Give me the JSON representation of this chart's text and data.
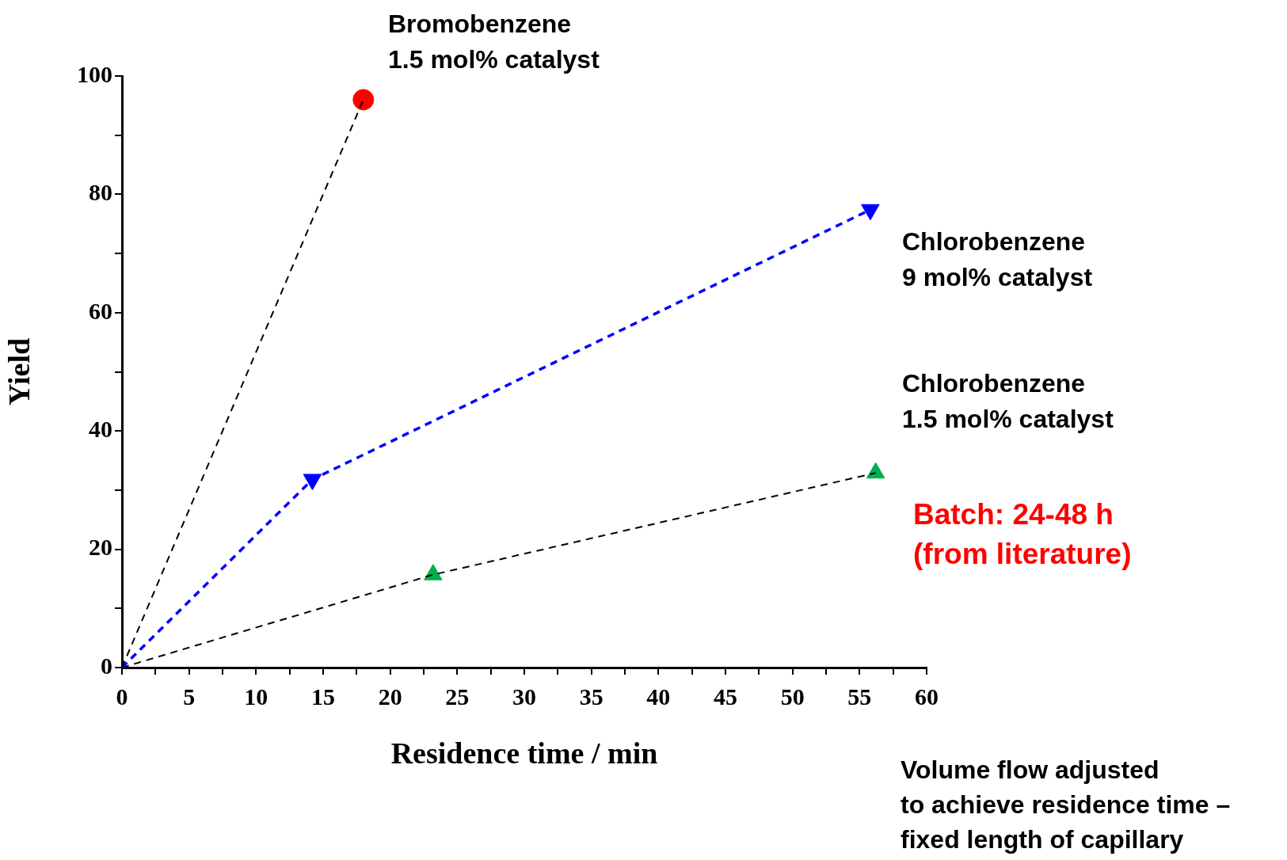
{
  "chart_data": {
    "type": "scatter",
    "xlabel": "Residence time / min",
    "ylabel": "Yield",
    "xlim": [
      0,
      60
    ],
    "ylim": [
      0,
      100
    ],
    "xticks": [
      0,
      {
        "value": 2.5,
        "label": null
      },
      5,
      {
        "value": 7.5,
        "label": null
      },
      10,
      {
        "value": 12.5,
        "label": null
      },
      15,
      {
        "value": 17.5,
        "label": null
      },
      20,
      {
        "value": 22.5,
        "label": null
      },
      25,
      {
        "value": 27.5,
        "label": null
      },
      30,
      {
        "value": 32.5,
        "label": null
      },
      35,
      {
        "value": 37.5,
        "label": null
      },
      40,
      {
        "value": 42.5,
        "label": null
      },
      45,
      {
        "value": 47.5,
        "label": null
      },
      50,
      {
        "value": 52.5,
        "label": null
      },
      55,
      {
        "value": 57.5,
        "label": null
      },
      60
    ],
    "yticks": [
      0,
      {
        "value": 10,
        "label": null
      },
      20,
      {
        "value": 30,
        "label": null
      },
      40,
      {
        "value": 50,
        "label": null
      },
      60,
      {
        "value": 70,
        "label": null
      },
      80,
      {
        "value": 90,
        "label": null
      },
      100
    ],
    "grid": false,
    "legend": false,
    "series": [
      {
        "type": "line",
        "color": "#000000",
        "x": [
          0,
          18
        ],
        "values": [
          0,
          96
        ],
        "line_style": "dashed",
        "marker": "none"
      },
      {
        "type": "line",
        "color": "#0000ff",
        "x": [
          0,
          14.2,
          55.8
        ],
        "values": [
          0,
          31.8,
          77.4
        ],
        "line_style": "dashed",
        "marker": "none"
      },
      {
        "type": "line",
        "color": "#000000",
        "x": [
          0,
          23.2,
          56.2
        ],
        "values": [
          0,
          15.7,
          32.9
        ],
        "line_style": "dashed",
        "marker": "none"
      },
      {
        "name": "Bromobenzene\n1.5 mol% catalyst",
        "color": "#ff0000",
        "x": [
          18
        ],
        "values": [
          96
        ],
        "marker": "circle"
      },
      {
        "name": "Chlorobenzene\n9 mol% catalyst",
        "color": "#0000ff",
        "x": [
          14.2,
          55.8
        ],
        "values": [
          31.8,
          77.4
        ],
        "marker": "triangle-down"
      },
      {
        "name": "Chlorobenzene\n1.5 mol% catalyst",
        "color": "#00b050",
        "x": [
          23.2,
          56.2
        ],
        "values": [
          15.7,
          32.9
        ],
        "marker": "triangle"
      }
    ],
    "annotations": [
      "Batch: 24-48 h\n(from literature)",
      "Volume flow adjusted\nto achieve residence time –\nfixed length of capillary"
    ]
  }
}
